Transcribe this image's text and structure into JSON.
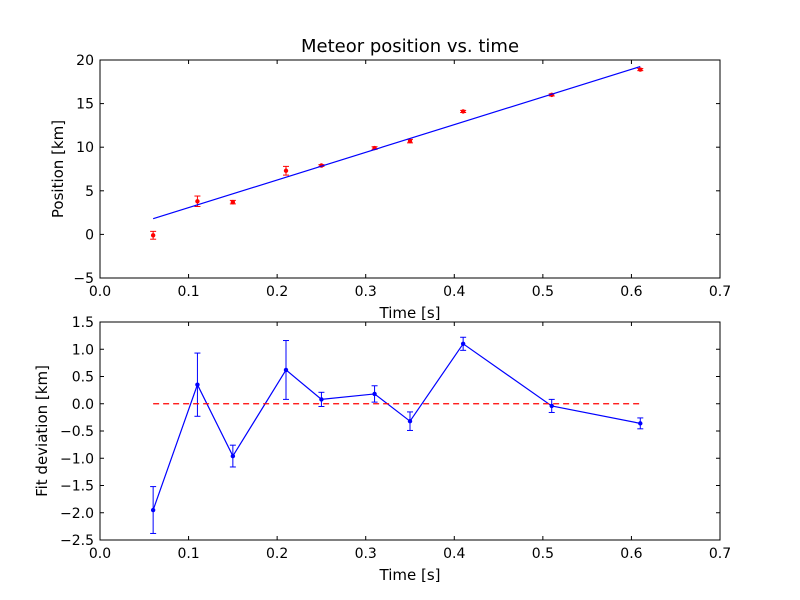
{
  "chart_data": [
    {
      "type": "scatter",
      "title": "Meteor position vs. time",
      "xlabel": "Time [s]",
      "ylabel": "Position [km]",
      "xlim": [
        0.0,
        0.7
      ],
      "ylim": [
        -5,
        20
      ],
      "xticks": [
        "0.0",
        "0.1",
        "0.2",
        "0.3",
        "0.4",
        "0.5",
        "0.6",
        "0.7"
      ],
      "yticks": [
        "−5",
        "0",
        "5",
        "10",
        "15",
        "20"
      ],
      "xtick_values": [
        0.0,
        0.1,
        0.2,
        0.3,
        0.4,
        0.5,
        0.6,
        0.7
      ],
      "ytick_values": [
        -5,
        0,
        5,
        10,
        15,
        20
      ],
      "grid": false,
      "series": [
        {
          "kind": "errorbar-points",
          "color": "#ff0000",
          "x": [
            0.06,
            0.11,
            0.15,
            0.21,
            0.25,
            0.31,
            0.35,
            0.41,
            0.51,
            0.61
          ],
          "y": [
            -0.1,
            3.8,
            3.7,
            7.3,
            7.9,
            9.9,
            10.7,
            14.1,
            16.0,
            18.9
          ],
          "err": [
            0.45,
            0.6,
            0.2,
            0.5,
            0.1,
            0.15,
            0.2,
            0.12,
            0.12,
            0.12
          ]
        },
        {
          "kind": "fit-line",
          "color": "#0000ff",
          "x": [
            0.06,
            0.61
          ],
          "y": [
            1.8,
            19.25
          ]
        }
      ]
    },
    {
      "type": "line",
      "title": "",
      "xlabel": "Time [s]",
      "ylabel": "Fit deviation [km]",
      "xlim": [
        0.0,
        0.7
      ],
      "ylim": [
        -2.5,
        1.5
      ],
      "xticks": [
        "0.0",
        "0.1",
        "0.2",
        "0.3",
        "0.4",
        "0.5",
        "0.6",
        "0.7"
      ],
      "yticks": [
        "−2.5",
        "−2.0",
        "−1.5",
        "−1.0",
        "−0.5",
        "0.0",
        "0.5",
        "1.0",
        "1.5"
      ],
      "xtick_values": [
        0.0,
        0.1,
        0.2,
        0.3,
        0.4,
        0.5,
        0.6,
        0.7
      ],
      "ytick_values": [
        -2.5,
        -2.0,
        -1.5,
        -1.0,
        -0.5,
        0.0,
        0.5,
        1.0,
        1.5
      ],
      "grid": false,
      "series": [
        {
          "kind": "errorbar-line",
          "color": "#0000ff",
          "x": [
            0.06,
            0.11,
            0.15,
            0.21,
            0.25,
            0.31,
            0.35,
            0.41,
            0.51,
            0.61
          ],
          "y": [
            -1.95,
            0.35,
            -0.96,
            0.62,
            0.08,
            0.18,
            -0.32,
            1.1,
            -0.04,
            -0.36
          ],
          "err": [
            0.43,
            0.58,
            0.2,
            0.54,
            0.13,
            0.15,
            0.17,
            0.12,
            0.12,
            0.1
          ]
        },
        {
          "kind": "zero-line",
          "color": "#ff0000",
          "x": [
            0.06,
            0.61
          ],
          "y": [
            0.0,
            0.0
          ]
        }
      ]
    }
  ]
}
